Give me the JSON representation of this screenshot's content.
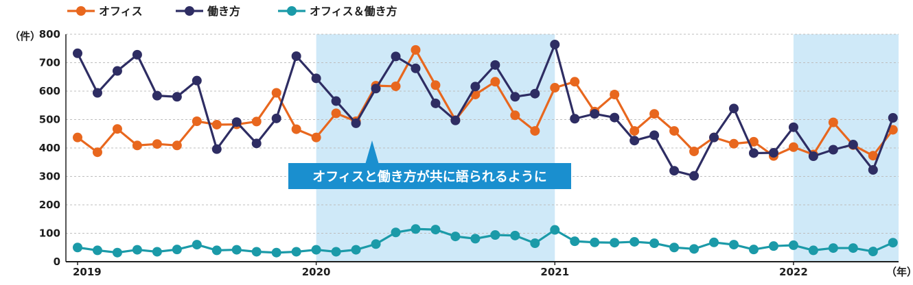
{
  "chart_data": {
    "type": "line",
    "ylabel": "（件）",
    "xlabel": "（年）",
    "ylim": [
      0,
      800
    ],
    "yticks": [
      0,
      100,
      200,
      300,
      400,
      500,
      600,
      700,
      800
    ],
    "x_tick_labels": [
      "2019",
      "2020",
      "2021",
      "2022"
    ],
    "grid": "horizontal-dashed",
    "legend_position": "top-left",
    "shaded_periods": [
      {
        "start_month": 12,
        "end_month": 24
      },
      {
        "start_month": 36,
        "end_month": 42
      }
    ],
    "series": [
      {
        "name": "オフィス",
        "color": "#e8671e",
        "values": [
          437,
          385,
          467,
          409,
          414,
          409,
          494,
          482,
          483,
          493,
          594,
          466,
          437,
          522,
          494,
          619,
          617,
          745,
          621,
          498,
          588,
          633,
          515,
          460,
          612,
          633,
          528,
          588,
          460,
          520,
          460,
          388,
          437,
          415,
          422,
          372,
          403,
          377,
          490,
          410,
          373,
          464
        ]
      },
      {
        "name": "働き方",
        "color": "#2e2d63",
        "values": [
          733,
          594,
          671,
          728,
          584,
          580,
          637,
          396,
          491,
          416,
          504,
          723,
          645,
          565,
          487,
          609,
          722,
          680,
          557,
          497,
          616,
          692,
          580,
          591,
          764,
          503,
          520,
          507,
          426,
          445,
          320,
          302,
          437,
          539,
          382,
          383,
          473,
          371,
          394,
          412,
          323,
          506
        ]
      },
      {
        "name": "オフィス＆働き方",
        "color": "#1b9aa8",
        "values": [
          50,
          40,
          32,
          42,
          35,
          43,
          60,
          40,
          42,
          35,
          32,
          35,
          42,
          35,
          42,
          62,
          103,
          115,
          113,
          89,
          81,
          94,
          92,
          65,
          112,
          72,
          68,
          67,
          70,
          65,
          50,
          45,
          68,
          60,
          43,
          55,
          58,
          40,
          48,
          48,
          36,
          67
        ]
      }
    ],
    "annotation": "オフィスと働き方が共に語られるように"
  },
  "colors": {
    "shade": "#cfe9f8",
    "annotation_bg": "#1a8fcf",
    "axis": "#1d1d1d",
    "grid": "#bdbdbd"
  }
}
